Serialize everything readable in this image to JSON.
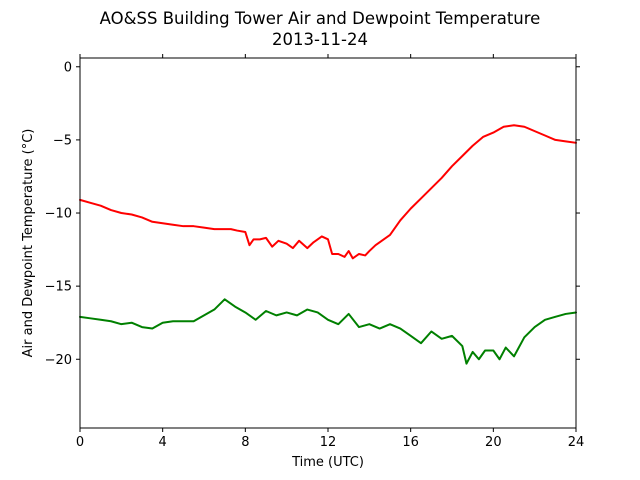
{
  "chart_data": {
    "type": "line",
    "title": "AO&SS Building Tower Air and Dewpoint Temperature",
    "subtitle": "2013-11-24",
    "xlabel": "Time (UTC)",
    "ylabel": "Air and Dewpoint Temperature (°C)",
    "xlim": [
      0,
      24
    ],
    "ylim": [
      -24.7,
      0.6
    ],
    "xticks": [
      0,
      4,
      8,
      12,
      16,
      20,
      24
    ],
    "yticks": [
      0,
      -5,
      -10,
      -15,
      -20
    ],
    "grid": false,
    "legend": "none",
    "series": [
      {
        "color": "#ff0000",
        "x": [
          0,
          0.5,
          1,
          1.5,
          2,
          2.5,
          3,
          3.5,
          4,
          4.5,
          5,
          5.5,
          6,
          6.5,
          7,
          7.3,
          7.6,
          8,
          8.2,
          8.4,
          8.7,
          9,
          9.3,
          9.6,
          10,
          10.3,
          10.6,
          11,
          11.3,
          11.7,
          12,
          12.2,
          12.5,
          12.8,
          13,
          13.2,
          13.5,
          13.8,
          14,
          14.3,
          14.6,
          15,
          15.5,
          16,
          16.5,
          17,
          17.5,
          18,
          18.5,
          19,
          19.5,
          20,
          20.5,
          21,
          21.5,
          22,
          22.5,
          23,
          23.5,
          24
        ],
        "y": [
          -9.1,
          -9.3,
          -9.5,
          -9.8,
          -10.0,
          -10.1,
          -10.3,
          -10.6,
          -10.7,
          -10.8,
          -10.9,
          -10.9,
          -11.0,
          -11.1,
          -11.1,
          -11.1,
          -11.2,
          -11.3,
          -12.2,
          -11.8,
          -11.8,
          -11.7,
          -12.3,
          -11.9,
          -12.1,
          -12.4,
          -11.9,
          -12.4,
          -12.0,
          -11.6,
          -11.8,
          -12.8,
          -12.8,
          -13.0,
          -12.6,
          -13.1,
          -12.8,
          -12.9,
          -12.6,
          -12.2,
          -11.9,
          -11.5,
          -10.5,
          -9.7,
          -9.0,
          -8.3,
          -7.6,
          -6.8,
          -6.1,
          -5.4,
          -4.8,
          -4.5,
          -4.1,
          -4.0,
          -4.1,
          -4.4,
          -4.7,
          -5.0,
          -5.1,
          -5.2
        ]
      },
      {
        "color": "#008000",
        "x": [
          0,
          0.5,
          1,
          1.5,
          2,
          2.5,
          3,
          3.5,
          4,
          4.5,
          5,
          5.5,
          6,
          6.5,
          7,
          7.5,
          8,
          8.5,
          9,
          9.5,
          10,
          10.5,
          11,
          11.5,
          12,
          12.5,
          13,
          13.5,
          14,
          14.5,
          15,
          15.5,
          16,
          16.5,
          17,
          17.5,
          18,
          18.5,
          18.7,
          19,
          19.3,
          19.6,
          20,
          20.3,
          20.6,
          21,
          21.5,
          22,
          22.5,
          23,
          23.5,
          24
        ],
        "y": [
          -17.1,
          -17.2,
          -17.3,
          -17.4,
          -17.6,
          -17.5,
          -17.8,
          -17.9,
          -17.5,
          -17.4,
          -17.4,
          -17.4,
          -17.0,
          -16.6,
          -15.9,
          -16.4,
          -16.8,
          -17.3,
          -16.7,
          -17.0,
          -16.8,
          -17.0,
          -16.6,
          -16.8,
          -17.3,
          -17.6,
          -16.9,
          -17.8,
          -17.6,
          -17.9,
          -17.6,
          -17.9,
          -18.4,
          -18.9,
          -18.1,
          -18.6,
          -18.4,
          -19.1,
          -20.3,
          -19.5,
          -20.0,
          -19.4,
          -19.4,
          -20.0,
          -19.2,
          -19.8,
          -18.5,
          -17.8,
          -17.3,
          -17.1,
          -16.9,
          -16.8
        ]
      }
    ]
  }
}
